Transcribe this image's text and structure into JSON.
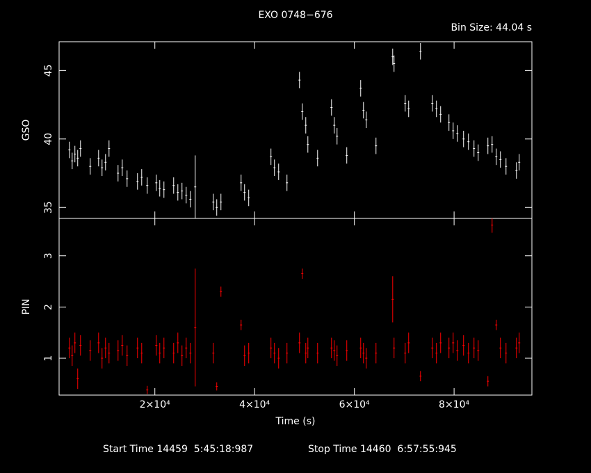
{
  "title": "EXO 0748−676",
  "bin_size": "Bin Size: 44.04 s",
  "footer": {
    "start": "Start Time 14459  5:45:18:987",
    "stop": "Stop Time 14460  6:57:55:945"
  },
  "chart_data": [
    {
      "type": "errorbar",
      "ylabel": "GSO",
      "color": "#ffffff",
      "x": [
        2860,
        3420,
        3970,
        4530,
        5090,
        7040,
        8720,
        9410,
        10110,
        10810,
        12620,
        13460,
        14430,
        16520,
        17360,
        18470,
        20290,
        20980,
        21820,
        23770,
        24610,
        25440,
        26280,
        27120,
        28090,
        31720,
        32410,
        33250,
        37290,
        37990,
        38820,
        43280,
        43980,
        44820,
        46490,
        49000,
        49560,
        50260,
        50680,
        52630,
        55420,
        55970,
        56530,
        58480,
        61270,
        61830,
        62390,
        64340,
        67690,
        67960,
        70190,
        70890,
        73260,
        75630,
        76460,
        77300,
        78970,
        79810,
        80650,
        81900,
        82880,
        83990,
        84830,
        86780,
        87620,
        88450,
        89290,
        90410,
        92500,
        93050
      ],
      "values": [
        39.2,
        38.4,
        38.9,
        38.6,
        39.3,
        38.0,
        38.6,
        37.9,
        38.3,
        39.3,
        37.5,
        37.9,
        37.1,
        36.9,
        37.2,
        36.6,
        36.8,
        36.4,
        36.3,
        36.6,
        36.1,
        36.2,
        35.9,
        35.6,
        36.5,
        35.4,
        35.0,
        35.4,
        36.8,
        36.1,
        35.7,
        38.7,
        37.9,
        37.6,
        36.8,
        44.3,
        42.0,
        41.0,
        39.6,
        38.6,
        42.3,
        41.0,
        40.2,
        38.8,
        43.7,
        42.1,
        41.4,
        39.5,
        46.0,
        45.5,
        42.6,
        42.2,
        46.4,
        42.6,
        42.2,
        41.8,
        41.2,
        40.6,
        40.4,
        40.0,
        39.8,
        39.3,
        39.0,
        39.5,
        39.6,
        38.7,
        38.5,
        38.0,
        37.7,
        38.3
      ],
      "errors": [
        0.6,
        0.6,
        0.6,
        0.6,
        0.6,
        0.6,
        0.6,
        0.6,
        0.6,
        0.6,
        0.6,
        0.6,
        0.6,
        0.6,
        0.6,
        0.6,
        0.6,
        0.6,
        0.6,
        0.6,
        0.6,
        0.6,
        0.6,
        0.6,
        2.3,
        0.6,
        0.6,
        0.6,
        0.6,
        0.6,
        0.6,
        0.6,
        0.6,
        0.6,
        0.6,
        0.6,
        0.6,
        0.6,
        0.6,
        0.6,
        0.6,
        0.6,
        0.6,
        0.6,
        0.6,
        0.6,
        0.6,
        0.6,
        0.6,
        0.6,
        0.6,
        0.6,
        0.6,
        0.6,
        0.6,
        0.6,
        0.6,
        0.6,
        0.6,
        0.6,
        0.6,
        0.6,
        0.6,
        0.6,
        0.6,
        0.6,
        0.6,
        0.6,
        0.6,
        0.6
      ],
      "xlim": [
        800,
        95600
      ],
      "ylim": [
        34.2,
        47.1
      ],
      "yticks": [
        35,
        40,
        45
      ]
    },
    {
      "type": "errorbar",
      "ylabel": "PIN",
      "xlabel": "Time (s)",
      "color": "#ff0000",
      "x": [
        2860,
        3420,
        3970,
        4530,
        5090,
        7040,
        8720,
        9410,
        10110,
        10810,
        12620,
        13460,
        14430,
        16520,
        17360,
        18470,
        20290,
        20980,
        21820,
        23770,
        24610,
        25440,
        26280,
        27120,
        28090,
        31720,
        32410,
        33250,
        37290,
        37990,
        38820,
        43280,
        43980,
        44820,
        46490,
        49000,
        49560,
        50260,
        50680,
        52630,
        55420,
        55970,
        56530,
        58480,
        61270,
        61830,
        62390,
        64340,
        67690,
        67960,
        70190,
        70890,
        73260,
        75630,
        76460,
        77300,
        78970,
        79810,
        80650,
        81900,
        82880,
        83990,
        84830,
        86780,
        87620,
        88450,
        89290,
        90410,
        92500,
        93050
      ],
      "values": [
        1.2,
        1.05,
        1.3,
        0.6,
        1.25,
        1.15,
        1.3,
        1.0,
        1.2,
        1.1,
        1.15,
        1.25,
        1.05,
        1.2,
        1.1,
        0.38,
        1.25,
        1.1,
        1.2,
        1.1,
        1.3,
        1.05,
        1.2,
        1.1,
        1.6,
        1.1,
        0.45,
        2.3,
        1.65,
        1.05,
        1.1,
        1.2,
        1.1,
        1.0,
        1.1,
        1.3,
        2.65,
        1.1,
        1.2,
        1.1,
        1.2,
        1.15,
        1.05,
        1.15,
        1.2,
        1.1,
        1.0,
        1.1,
        2.15,
        1.2,
        1.1,
        1.3,
        0.65,
        1.2,
        1.1,
        1.3,
        1.2,
        1.3,
        1.15,
        1.25,
        1.1,
        1.2,
        1.15,
        0.55,
        3.6,
        1.65,
        1.2,
        1.1,
        1.2,
        1.3
      ],
      "errors": [
        0.2,
        0.2,
        0.2,
        0.2,
        0.2,
        0.2,
        0.2,
        0.2,
        0.2,
        0.2,
        0.2,
        0.2,
        0.2,
        0.2,
        0.2,
        0.08,
        0.2,
        0.2,
        0.2,
        0.2,
        0.2,
        0.2,
        0.2,
        0.2,
        1.15,
        0.2,
        0.08,
        0.1,
        0.1,
        0.2,
        0.2,
        0.2,
        0.2,
        0.2,
        0.2,
        0.2,
        0.1,
        0.2,
        0.2,
        0.2,
        0.2,
        0.2,
        0.2,
        0.2,
        0.2,
        0.2,
        0.2,
        0.2,
        0.45,
        0.2,
        0.2,
        0.2,
        0.1,
        0.2,
        0.2,
        0.2,
        0.2,
        0.2,
        0.2,
        0.2,
        0.2,
        0.2,
        0.2,
        0.1,
        0.15,
        0.1,
        0.2,
        0.2,
        0.2,
        0.2
      ],
      "xlim": [
        800,
        95600
      ],
      "ylim": [
        0.28,
        3.73
      ],
      "yticks": [
        1,
        2,
        3
      ],
      "xticks": [
        {
          "value": 20000,
          "label": "2×10⁴"
        },
        {
          "value": 40000,
          "label": "4×10⁴"
        },
        {
          "value": 60000,
          "label": "6×10⁴"
        },
        {
          "value": 80000,
          "label": "8×10⁴"
        }
      ]
    }
  ]
}
